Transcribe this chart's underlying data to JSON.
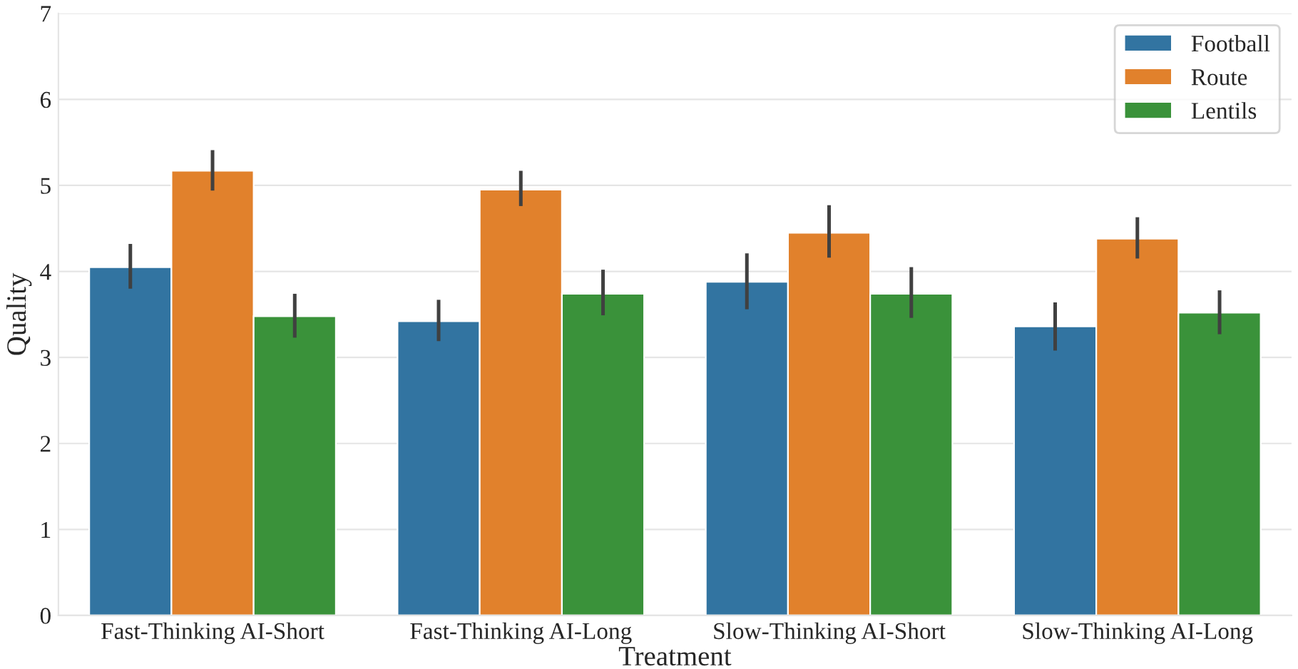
{
  "chart_data": {
    "type": "bar",
    "xlabel": "Treatment",
    "ylabel": "Quality",
    "categories": [
      "Fast-Thinking AI-Short",
      "Fast-Thinking AI-Long",
      "Slow-Thinking AI-Short",
      "Slow-Thinking AI-Long"
    ],
    "series": [
      {
        "name": "Football",
        "color": "#3274a1",
        "values": [
          4.05,
          3.42,
          3.88,
          3.36
        ],
        "errors": [
          [
            3.8,
            4.32
          ],
          [
            3.19,
            3.67
          ],
          [
            3.56,
            4.21
          ],
          [
            3.08,
            3.64
          ]
        ]
      },
      {
        "name": "Route",
        "color": "#e1812c",
        "values": [
          5.17,
          4.95,
          4.45,
          4.38
        ],
        "errors": [
          [
            4.94,
            5.41
          ],
          [
            4.76,
            5.17
          ],
          [
            4.16,
            4.77
          ],
          [
            4.15,
            4.63
          ]
        ]
      },
      {
        "name": "Lentils",
        "color": "#3a923a",
        "values": [
          3.48,
          3.74,
          3.74,
          3.52
        ],
        "errors": [
          [
            3.23,
            3.74
          ],
          [
            3.49,
            4.02
          ],
          [
            3.46,
            4.05
          ],
          [
            3.27,
            3.78
          ]
        ]
      }
    ],
    "ylim": [
      0,
      7
    ],
    "yticks": [
      0,
      1,
      2,
      3,
      4,
      5,
      6,
      7
    ],
    "grid": "y",
    "legend": "top right"
  }
}
